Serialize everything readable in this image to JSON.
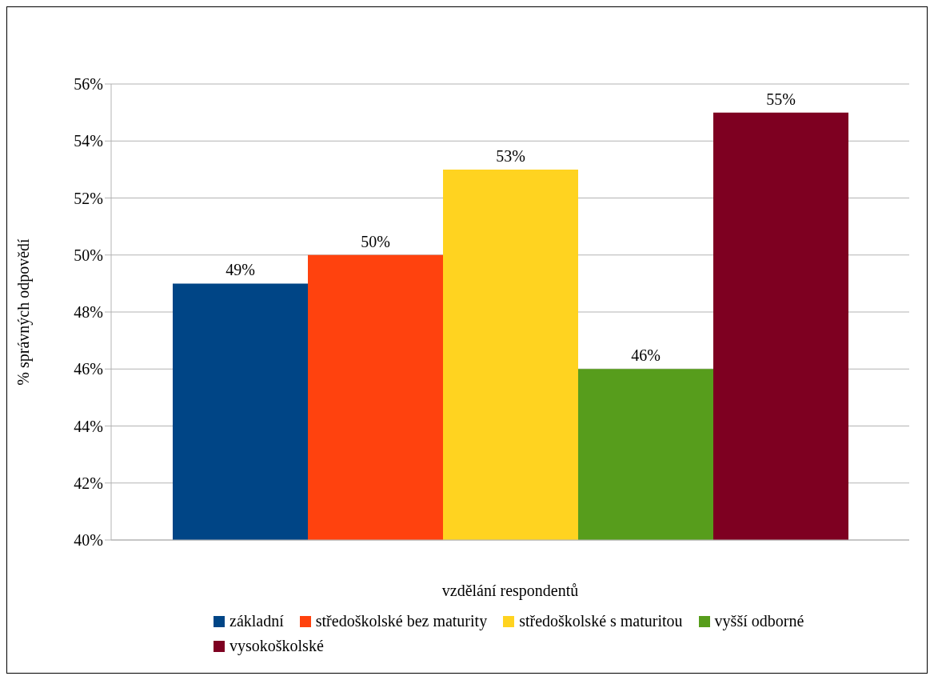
{
  "chart_data": {
    "type": "bar",
    "xlabel": "vzdělání respondentů",
    "ylabel": "% správných odpovědí",
    "categories": [
      null
    ],
    "series": [
      {
        "name": "základní",
        "color": "#004586",
        "values": [
          49
        ],
        "value_labels": [
          "49%"
        ]
      },
      {
        "name": "středoškolské bez maturity",
        "color": "#ff420e",
        "values": [
          50
        ],
        "value_labels": [
          "50%"
        ]
      },
      {
        "name": "středoškolské s maturitou",
        "color": "#ffd320",
        "values": [
          53
        ],
        "value_labels": [
          "53%"
        ]
      },
      {
        "name": "vyšší odborné",
        "color": "#579d1c",
        "values": [
          46
        ],
        "value_labels": [
          "46%"
        ]
      },
      {
        "name": "vysokoškolské",
        "color": "#7e0021",
        "values": [
          55
        ],
        "value_labels": [
          "55%"
        ]
      }
    ],
    "ylim": [
      40,
      56
    ],
    "yticks": [
      {
        "value": 40,
        "label": "40%"
      },
      {
        "value": 42,
        "label": "42%"
      },
      {
        "value": 44,
        "label": "44%"
      },
      {
        "value": 46,
        "label": "46%"
      },
      {
        "value": 48,
        "label": "48%"
      },
      {
        "value": 50,
        "label": "50%"
      },
      {
        "value": 52,
        "label": "52%"
      },
      {
        "value": 54,
        "label": "54%"
      },
      {
        "value": 56,
        "label": "56%"
      }
    ],
    "grid": "y",
    "legend": "bottom"
  }
}
